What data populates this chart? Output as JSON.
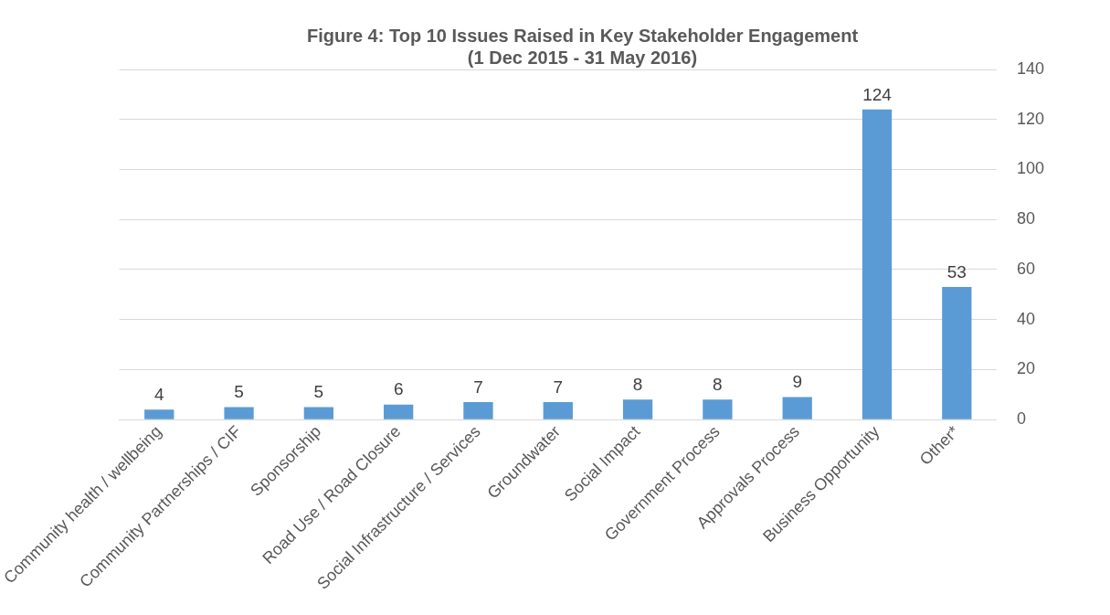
{
  "chart_data": {
    "type": "bar",
    "title": "Figure 4: Top 10 Issues Raised in Key Stakeholder Engagement\n(1 Dec 2015 - 31 May 2016)",
    "categories": [
      "Community health / wellbeing",
      "Community Partnerships / CIF",
      "Sponsorship",
      "Road Use / Road Closure",
      "Social Infrastructure / Services",
      "Groundwater",
      "Social Impact",
      "Government Process",
      "Approvals Process",
      "Business Opportunity",
      "Other*"
    ],
    "values": [
      4,
      5,
      5,
      6,
      7,
      7,
      8,
      8,
      9,
      124,
      53
    ],
    "color": "#5b9bd5",
    "ylim": [
      0,
      140
    ],
    "yticks": [
      0,
      20,
      40,
      60,
      80,
      100,
      120,
      140
    ],
    "grid": "y",
    "data_labels": true,
    "legend": false
  }
}
